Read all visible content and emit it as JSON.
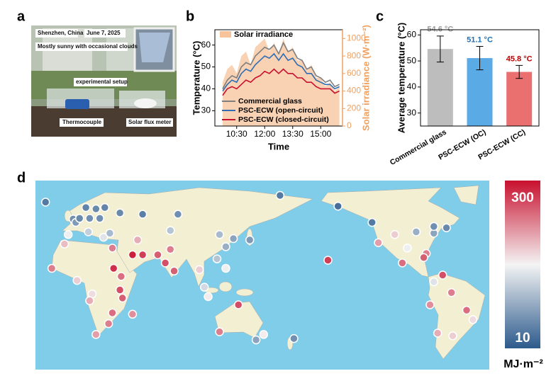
{
  "panel_labels": [
    "a",
    "b",
    "c",
    "d"
  ],
  "photo": {
    "texts": [
      "Shenzhen, China",
      "June 7, 2025",
      "Mostly sunny with occasional clouds",
      "experimental setup",
      "Thermocouple",
      "Solar flux meter"
    ]
  },
  "chart_data": [
    {
      "type": "line",
      "ylabel": "Temperature (°C)",
      "y2label": "Solar irradiance (W·m⁻²)",
      "xlabel": "Time",
      "x": [
        "09:45",
        "10:00",
        "10:15",
        "10:30",
        "10:45",
        "11:00",
        "11:15",
        "11:30",
        "11:45",
        "12:00",
        "12:15",
        "12:30",
        "12:45",
        "13:00",
        "13:15",
        "13:30",
        "13:45",
        "14:00",
        "14:15",
        "14:30",
        "14:45",
        "15:00",
        "15:15",
        "15:30",
        "15:45",
        "16:00"
      ],
      "xlim": [
        "09:20",
        "16:10"
      ],
      "xticks": [
        "10:30",
        "12:00",
        "13:30",
        "15:00"
      ],
      "ylim": [
        23,
        67
      ],
      "yticks": [
        30,
        40,
        50,
        60
      ],
      "y2lim": [
        0,
        1100
      ],
      "y2ticks": [
        0,
        200,
        400,
        600,
        800,
        1000
      ],
      "series": [
        {
          "name": "Solar irradiance",
          "color": "#f7c39a",
          "axis": "y2",
          "values": [
            500,
            650,
            700,
            600,
            800,
            850,
            700,
            900,
            950,
            1000,
            850,
            950,
            800,
            1000,
            850,
            900,
            750,
            750,
            650,
            700,
            550,
            550,
            450,
            500,
            400,
            450
          ]
        },
        {
          "name": "Commercial glass",
          "color": "#7f7f7f",
          "values": [
            40,
            44,
            46,
            45,
            50,
            52,
            51,
            55,
            57,
            59,
            58,
            60,
            56,
            61,
            57,
            58,
            54,
            53,
            49,
            50,
            46,
            45,
            43,
            44,
            41,
            42
          ]
        },
        {
          "name": "PSC-ECW (open-circuit)",
          "color": "#2f6db5",
          "values": [
            39,
            42,
            44,
            43,
            47,
            49,
            48,
            51,
            53,
            55,
            54,
            56,
            53,
            56,
            53,
            54,
            51,
            50,
            47,
            47,
            44,
            43,
            42,
            42,
            40,
            41
          ]
        },
        {
          "name": "PSC-ECW (closed-circuit)",
          "color": "#c8102e",
          "values": [
            37,
            40,
            41,
            40,
            42,
            44,
            43,
            45,
            46,
            48,
            47,
            49,
            47,
            49,
            47,
            47,
            45,
            45,
            43,
            43,
            41,
            40,
            40,
            40,
            38,
            39
          ]
        }
      ]
    },
    {
      "type": "bar",
      "ylabel": "Average temperature (°C)",
      "categories": [
        "Commercial glass",
        "PSC-ECW (OC)",
        "PSC-ECW (CC)"
      ],
      "values": [
        54.6,
        51.1,
        45.8
      ],
      "value_labels": [
        "54.6 °C",
        "51.1 °C",
        "45.8 °C"
      ],
      "errors": [
        5.0,
        4.5,
        2.5
      ],
      "colors": [
        "#bdbdbd",
        "#5aaae6",
        "#ea7070"
      ],
      "value_label_colors": [
        "#9a9a9a",
        "#1f6fb5",
        "#c00000"
      ],
      "ylim": [
        25,
        62
      ],
      "yticks": [
        30,
        40,
        50,
        60
      ]
    },
    {
      "type": "map",
      "xlim": [
        -30,
        330
      ],
      "ylim": [
        -60,
        80
      ],
      "clim": [
        10,
        300
      ],
      "unit": "MJ·m⁻²",
      "cmap": [
        "#2c5a8c",
        "#f4f4f4",
        "#c8102e"
      ],
      "x": [
        -0.1,
        2,
        13,
        5,
        10,
        18,
        25,
        21,
        -4,
        12,
        24,
        29,
        37,
        -22,
        31,
        -7,
        -17,
        32,
        38,
        37,
        3,
        15,
        39,
        13,
        31,
        28,
        18,
        47,
        47,
        55,
        51,
        67,
        77,
        73,
        80,
        77,
        83,
        116,
        121,
        114,
        140,
        127,
        100,
        104,
        107,
        121,
        116,
        131,
        151,
        145,
        175,
        202,
        210,
        237,
        242,
        255,
        261,
        265,
        272,
        286,
        286,
        280,
        278,
        293,
        286,
        283,
        300,
        312,
        317,
        289,
        301,
        296,
        164,
        55
      ],
      "y": [
        51.5,
        49,
        52,
        52,
        60,
        59,
        60,
        52,
        40,
        42,
        38,
        41,
        56,
        64,
        30,
        33,
        15,
        15,
        9,
        -1,
        6,
        -4,
        -7,
        -9,
        -18,
        -26,
        -34,
        -19,
        25,
        25,
        36,
        25,
        29,
        19,
        13,
        43,
        55,
        40,
        31,
        22,
        36,
        37,
        14,
        1,
        -6,
        15,
        -32,
        -12,
        -34,
        -38,
        -37,
        21,
        61,
        49,
        34,
        40,
        19,
        30,
        42,
        41,
        46,
        26,
        23,
        10,
        5,
        -12,
        -3,
        -16,
        -23,
        -33,
        -35,
        45,
        69,
        55
      ],
      "values": [
        60,
        70,
        60,
        55,
        50,
        55,
        50,
        60,
        150,
        120,
        140,
        100,
        55,
        40,
        230,
        190,
        230,
        280,
        240,
        260,
        180,
        170,
        250,
        200,
        240,
        230,
        210,
        220,
        290,
        270,
        200,
        250,
        230,
        260,
        250,
        110,
        60,
        100,
        90,
        110,
        70,
        80,
        180,
        130,
        160,
        150,
        230,
        260,
        160,
        80,
        60,
        270,
        30,
        40,
        210,
        180,
        240,
        150,
        90,
        80,
        60,
        230,
        250,
        260,
        140,
        220,
        230,
        240,
        170,
        200,
        180,
        55,
        40,
        45
      ]
    }
  ]
}
